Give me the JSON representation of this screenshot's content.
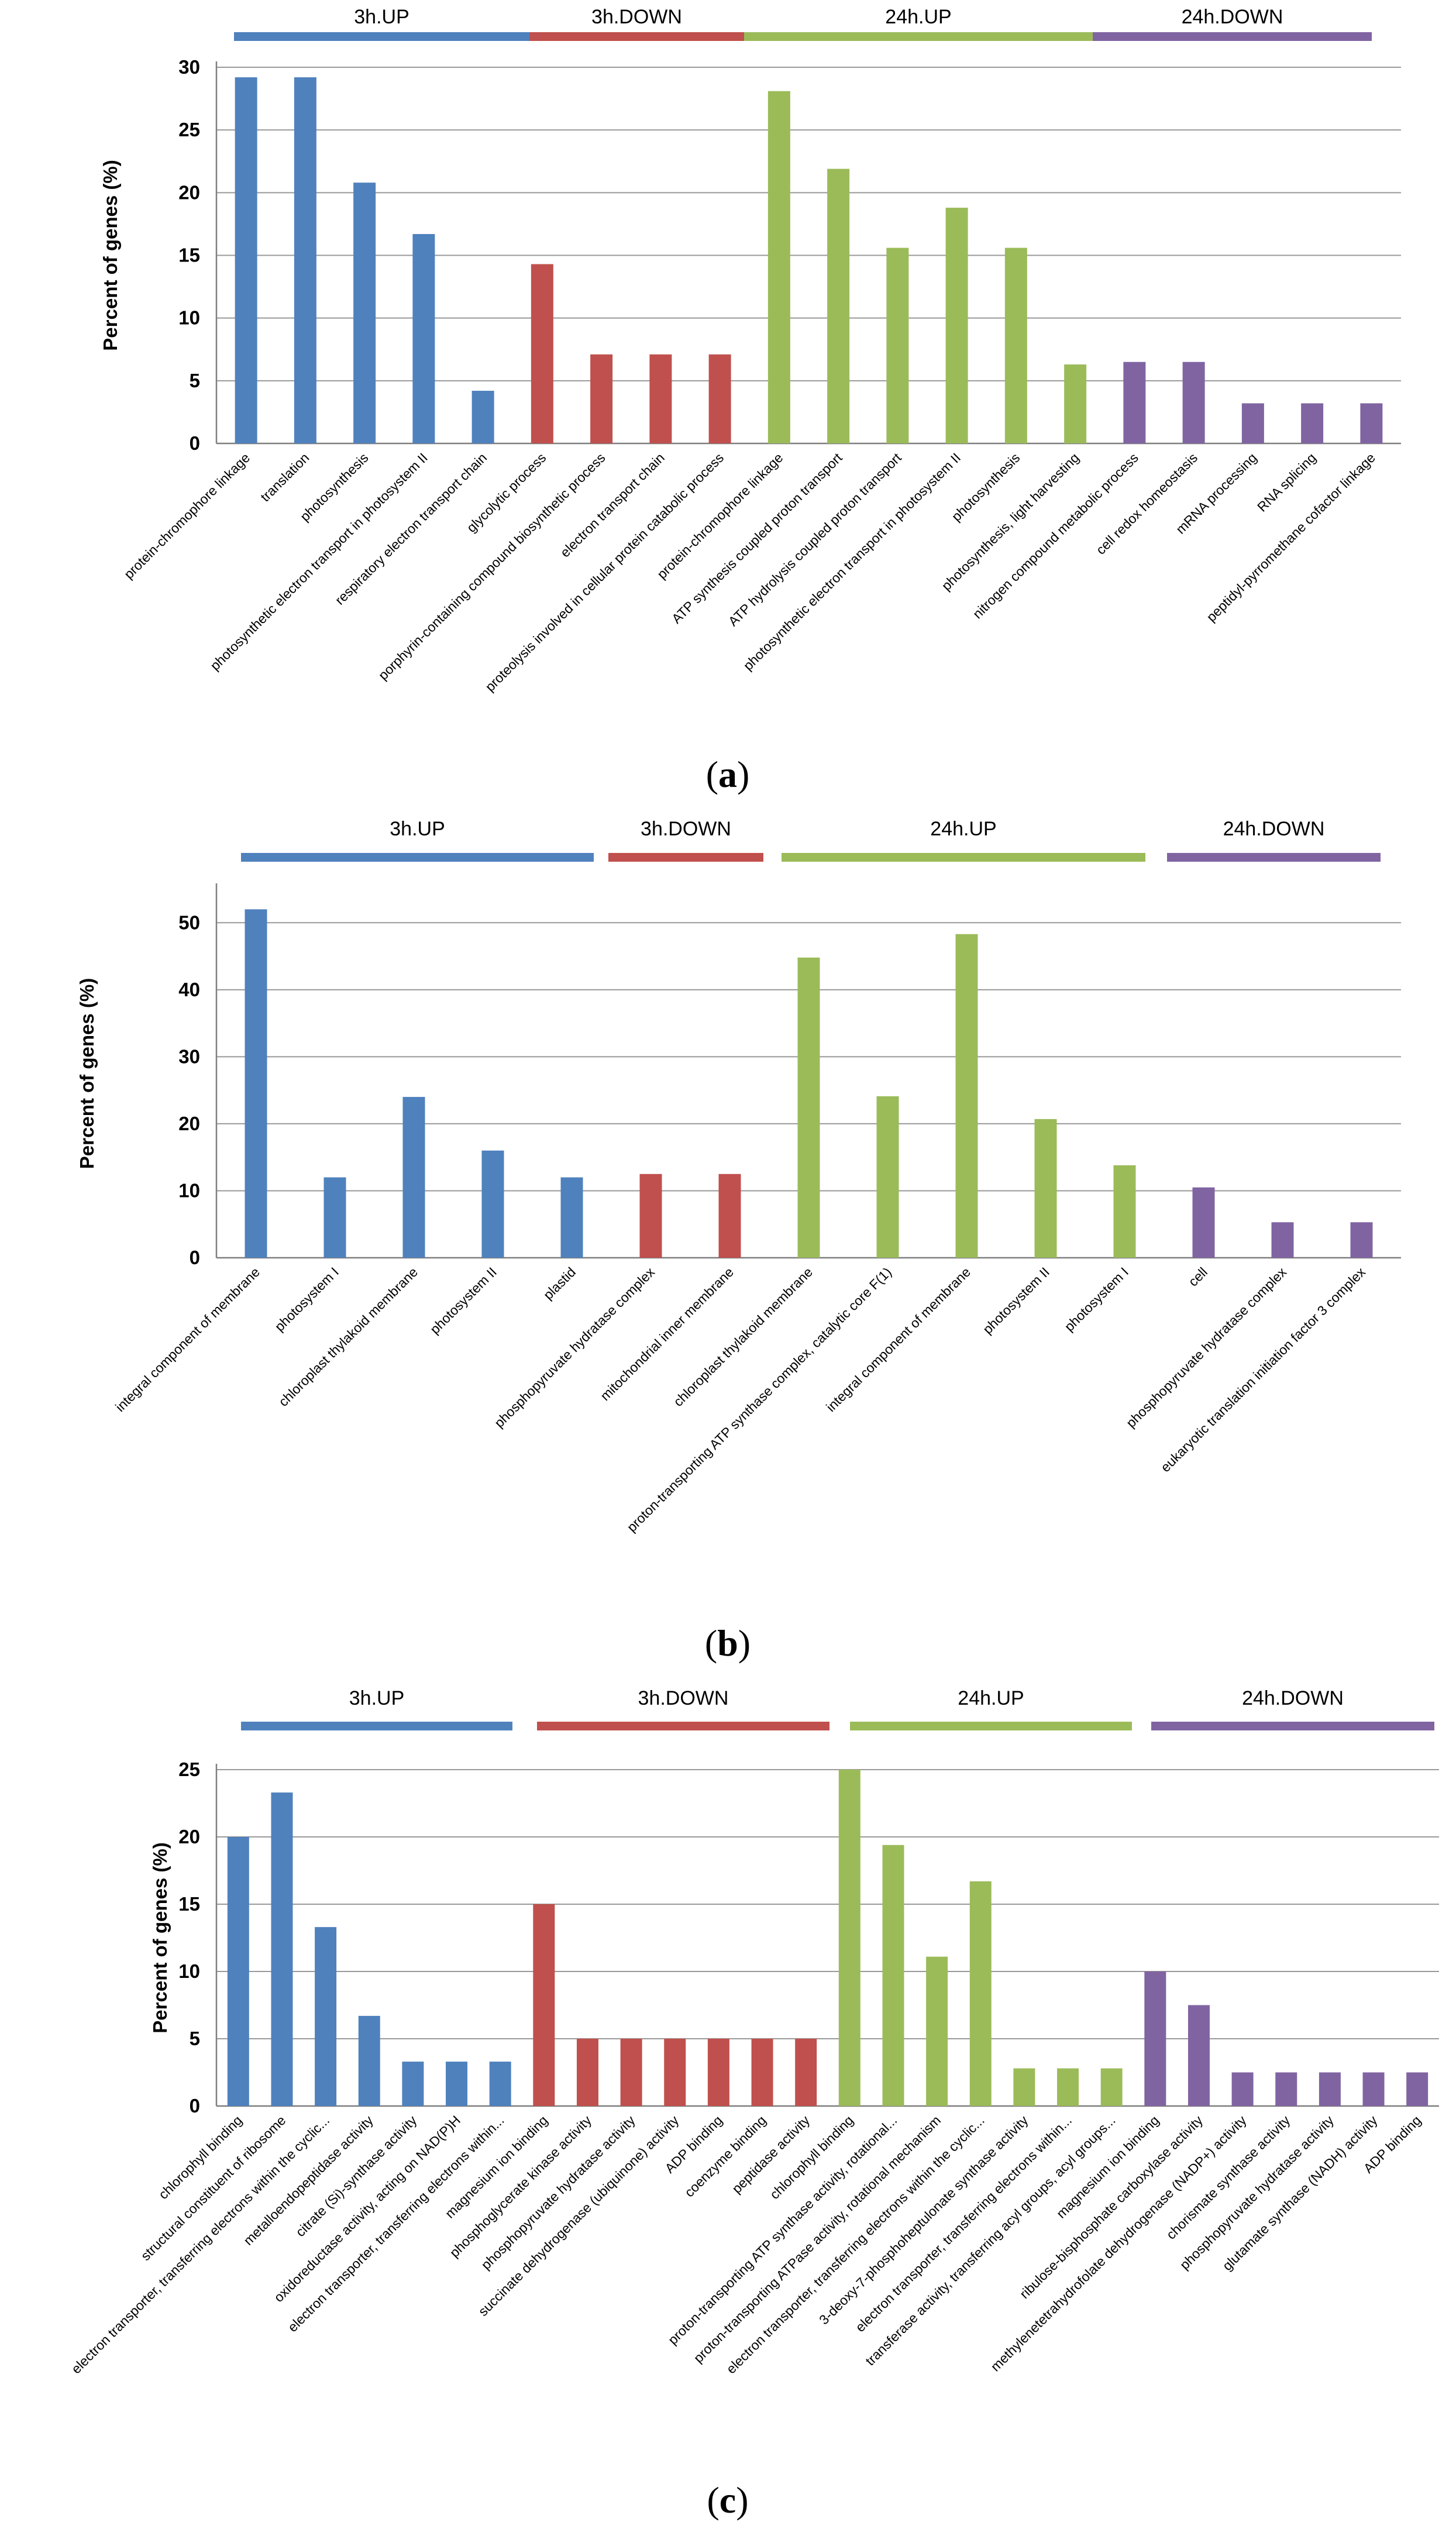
{
  "colors": {
    "up3h": "#4f81bd",
    "down3h": "#c0504d",
    "up24h": "#9bbb59",
    "down24h": "#8064a2",
    "grid": "#999999"
  },
  "chart_data": [
    {
      "type": "bar",
      "panel_label": "a",
      "ylabel": "Percent of genes (%)",
      "ylim": [
        0,
        30
      ],
      "yticks": [
        0,
        5,
        10,
        15,
        20,
        25,
        30
      ],
      "groups": [
        {
          "name": "3h.UP",
          "color": "#4f81bd",
          "categories": [
            "protein-chromophore linkage",
            "translation",
            "photosynthesis",
            "photosynthetic electron transport in photosystem II",
            "respiratory electron transport chain"
          ],
          "values": [
            29.2,
            29.2,
            20.8,
            16.7,
            4.2
          ]
        },
        {
          "name": "3h.DOWN",
          "color": "#c0504d",
          "categories": [
            "glycolytic process",
            "porphyrin-containing compound biosynthetic process",
            "electron transport chain",
            "proteolysis involved in cellular protein catabolic process"
          ],
          "values": [
            14.3,
            7.1,
            7.1,
            7.1
          ]
        },
        {
          "name": "24h.UP",
          "color": "#9bbb59",
          "categories": [
            "protein-chromophore linkage",
            "ATP synthesis coupled proton transport",
            "ATP hydrolysis coupled proton transport",
            "photosynthetic electron transport in photosystem II",
            "photosynthesis",
            "photosynthesis, light harvesting"
          ],
          "values": [
            28.1,
            21.9,
            15.6,
            18.8,
            15.6,
            6.3
          ]
        },
        {
          "name": "24h.DOWN",
          "color": "#8064a2",
          "categories": [
            "nitrogen compound metabolic process",
            "cell redox homeostasis",
            "mRNA processing",
            "RNA splicing",
            "peptidyl-pyrromethane cofactor linkage"
          ],
          "values": [
            6.5,
            6.5,
            3.2,
            3.2,
            3.2
          ]
        }
      ]
    },
    {
      "type": "bar",
      "panel_label": "b",
      "ylabel": "Percent of genes (%)",
      "ylim": [
        0,
        55
      ],
      "yticks": [
        0,
        10,
        20,
        30,
        40,
        50
      ],
      "groups": [
        {
          "name": "3h.UP",
          "color": "#4f81bd",
          "categories": [
            "integral component of membrane",
            "photosystem I",
            "chloroplast thylakoid membrane",
            "photosystem II",
            "plastid"
          ],
          "values": [
            52,
            12,
            24,
            16,
            12
          ]
        },
        {
          "name": "3h.DOWN",
          "color": "#c0504d",
          "categories": [
            "phosphopyruvate hydratase complex",
            "mitochondrial inner membrane"
          ],
          "values": [
            12.5,
            12.5
          ]
        },
        {
          "name": "24h.UP",
          "color": "#9bbb59",
          "categories": [
            "chloroplast thylakoid membrane",
            "proton-transporting ATP synthase complex, catalytic core F(1)",
            "integral component of membrane",
            "photosystem II",
            "photosystem I"
          ],
          "values": [
            44.8,
            24.1,
            48.3,
            20.7,
            13.8
          ]
        },
        {
          "name": "24h.DOWN",
          "color": "#8064a2",
          "categories": [
            "cell",
            "phosphopyruvate hydratase complex",
            "eukaryotic translation initiation factor 3 complex"
          ],
          "values": [
            10.5,
            5.3,
            5.3
          ]
        }
      ]
    },
    {
      "type": "bar",
      "panel_label": "c",
      "ylabel": "Percent of genes (%)",
      "ylim": [
        0,
        25
      ],
      "yticks": [
        0,
        5,
        10,
        15,
        20,
        25
      ],
      "groups": [
        {
          "name": "3h.UP",
          "color": "#4f81bd",
          "categories": [
            "chlorophyll binding",
            "structural constituent of ribosome",
            "electron transporter, transferring electrons within the cyclic...",
            "metalloendopeptidase activity",
            "citrate (Si)-synthase activity",
            "oxidoreductase activity, acting on NAD(P)H",
            "electron transporter, transferring electrons within..."
          ],
          "values": [
            20,
            23.3,
            13.3,
            6.7,
            3.3,
            3.3,
            3.3
          ]
        },
        {
          "name": "3h.DOWN",
          "color": "#c0504d",
          "categories": [
            "magnesium ion binding",
            "phosphoglycerate kinase activity",
            "phosphopyruvate hydratase activity",
            "succinate dehydrogenase (ubiquinone) activity",
            "ADP binding",
            "coenzyme binding",
            "peptidase activity"
          ],
          "values": [
            15,
            5,
            5,
            5,
            5,
            5,
            5
          ]
        },
        {
          "name": "24h.UP",
          "color": "#9bbb59",
          "categories": [
            "chlorophyll binding",
            "proton-transporting ATP synthase activity, rotational...",
            "proton-transporting ATPase activity, rotational mechanism",
            "electron transporter, transferring electrons within the cyclic...",
            "3-deoxy-7-phosphoheptulonate synthase activity",
            "electron transporter, transferring electrons within...",
            "transferase activity, transferring acyl groups, acyl groups..."
          ],
          "values": [
            25,
            19.4,
            11.1,
            16.7,
            2.8,
            2.8,
            2.8
          ]
        },
        {
          "name": "24h.DOWN",
          "color": "#8064a2",
          "categories": [
            "magnesium ion binding",
            "ribulose-bisphosphate carboxylase activity",
            "methylenetetrahydrofolate dehydrogenase (NADP+) activity",
            "chorismate synthase activity",
            "phosphopyruvate hydratase activity",
            "glutamate synthase (NADH) activity",
            "ADP binding"
          ],
          "values": [
            10,
            7.5,
            2.5,
            2.5,
            2.5,
            2.5,
            2.5
          ]
        }
      ]
    }
  ]
}
